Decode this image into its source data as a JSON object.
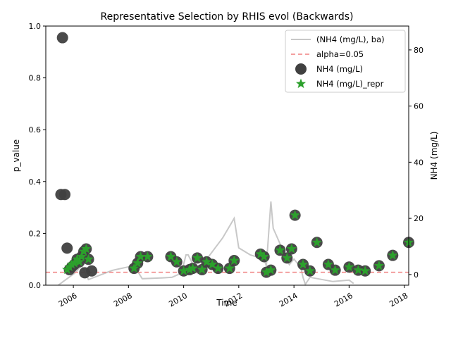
{
  "chart_data": {
    "type": "scatter",
    "title": "Representative Selection by RHIS evol (Backwards)",
    "xlabel": "Time",
    "ylabel": "p_value",
    "y2label": "NH4 (mg/L)",
    "xlim": [
      "2005-01-01",
      "2018-03-01"
    ],
    "ylim": [
      0,
      1.0
    ],
    "y2lim": [
      -3.8,
      88.5
    ],
    "x_ticks": [
      "2006",
      "2008",
      "2010",
      "2012",
      "2014",
      "2016",
      "2018"
    ],
    "y_ticks": [
      "0.0",
      "0.2",
      "0.4",
      "0.6",
      "0.8",
      "1.0"
    ],
    "y2_ticks": [
      "0",
      "20",
      "40",
      "60",
      "80"
    ],
    "legend_position": "upper right",
    "alpha": 0.05,
    "colors": {
      "line": "#c8c8c8",
      "alpha_line": "#f08080",
      "points": "#404040",
      "repr": "#2ca02c"
    },
    "series": [
      {
        "name": "(NH4 (mg/L), ba)",
        "kind": "line",
        "axis": "right",
        "points": [
          [
            "2005-06-15",
            -3.8
          ],
          [
            "2005-08-20",
            -2.5
          ],
          [
            "2006-01-20",
            0.5
          ],
          [
            "2006-04-20",
            3.2
          ],
          [
            "2006-07-20",
            -1.8
          ],
          [
            "2007-06-01",
            1.5
          ],
          [
            "2008-02-15",
            3.0
          ],
          [
            "2008-05-01",
            1.2
          ],
          [
            "2008-07-01",
            -1.5
          ],
          [
            "2009-04-01",
            -1.2
          ],
          [
            "2009-08-01",
            -1.0
          ],
          [
            "2009-12-01",
            0.5
          ],
          [
            "2010-02-01",
            7.0
          ],
          [
            "2010-03-01",
            7.0
          ],
          [
            "2010-07-01",
            0.5
          ],
          [
            "2010-12-01",
            6.5
          ],
          [
            "2011-06-01",
            13.0
          ],
          [
            "2011-11-01",
            20.0
          ],
          [
            "2012-01-01",
            9.5
          ],
          [
            "2012-06-01",
            7.0
          ],
          [
            "2012-12-01",
            5.5
          ],
          [
            "2013-01-01",
            3.0
          ],
          [
            "2013-03-01",
            26.0
          ],
          [
            "2013-04-01",
            16.5
          ],
          [
            "2013-08-01",
            9.0
          ],
          [
            "2013-11-01",
            3.5
          ],
          [
            "2014-01-01",
            5.5
          ],
          [
            "2014-04-01",
            2.5
          ],
          [
            "2014-05-01",
            -1.0
          ],
          [
            "2014-06-01",
            -3.5
          ],
          [
            "2014-08-01",
            -1.0
          ],
          [
            "2015-06-01",
            -2.5
          ],
          [
            "2016-01-01",
            -2.0
          ],
          [
            "2016-03-01",
            -3.2
          ]
        ]
      },
      {
        "name": "alpha=0.05",
        "kind": "hline",
        "axis": "left",
        "value": 0.05
      },
      {
        "name": "NH4 (mg/L)",
        "kind": "scatter",
        "axis": "left",
        "x": [
          "2005-08-10",
          "2005-07-20",
          "2005-09-10",
          "2005-10-10",
          "2006-09-01",
          "2005-11-10",
          "2005-12-10",
          "2006-01-15",
          "2006-02-20",
          "2006-03-20",
          "2006-04-20",
          "2006-05-20",
          "2006-06-20",
          "2006-07-20",
          "2006-06-01",
          "2008-03-15",
          "2008-05-01",
          "2008-06-10",
          "2008-09-10",
          "2009-07-15",
          "2009-10-01",
          "2010-01-01",
          "2010-03-20",
          "2010-05-01",
          "2010-07-01",
          "2010-09-01",
          "2010-11-01",
          "2011-01-15",
          "2011-04-01",
          "2011-09-01",
          "2011-11-01",
          "2012-10-15",
          "2012-12-01",
          "2013-01-01",
          "2013-03-01",
          "2013-07-01",
          "2013-10-01",
          "2013-12-01",
          "2014-01-15",
          "2014-05-01",
          "2014-08-01",
          "2014-11-01",
          "2015-04-01",
          "2015-07-01",
          "2016-01-01",
          "2016-05-01",
          "2016-08-01",
          "2017-02-01",
          "2017-08-01",
          "2018-03-01"
        ],
        "y": [
          0.955,
          0.35,
          0.35,
          0.143,
          0.055,
          0.06,
          0.07,
          0.08,
          0.1,
          0.09,
          0.11,
          0.13,
          0.14,
          0.1,
          0.048,
          0.065,
          0.085,
          0.11,
          0.11,
          0.11,
          0.09,
          0.055,
          0.06,
          0.065,
          0.105,
          0.06,
          0.09,
          0.08,
          0.065,
          0.065,
          0.095,
          0.12,
          0.11,
          0.05,
          0.058,
          0.135,
          0.105,
          0.14,
          0.27,
          0.08,
          0.055,
          0.165,
          0.08,
          0.058,
          0.07,
          0.058,
          0.055,
          0.075,
          0.115,
          0.165
        ]
      },
      {
        "name": "NH4 (mg/L)_repr",
        "kind": "scatter",
        "axis": "left",
        "marker": "star",
        "x": [
          "2005-10-10",
          "2005-11-10",
          "2005-12-10",
          "2006-01-15",
          "2006-02-20",
          "2006-03-20",
          "2006-04-20",
          "2006-05-20",
          "2006-06-20",
          "2006-07-20",
          "2008-03-15",
          "2008-05-01",
          "2008-06-10",
          "2008-09-10",
          "2009-07-15",
          "2009-10-01",
          "2010-01-01",
          "2010-03-20",
          "2010-05-01",
          "2010-07-01",
          "2010-09-01",
          "2010-11-01",
          "2011-01-15",
          "2011-04-01",
          "2011-09-01",
          "2011-11-01",
          "2012-10-15",
          "2012-12-01",
          "2013-01-01",
          "2013-03-01",
          "2013-07-01",
          "2013-10-01",
          "2013-12-01",
          "2014-01-15",
          "2014-05-01",
          "2014-08-01",
          "2014-11-01",
          "2015-04-01",
          "2015-07-01",
          "2016-01-01",
          "2016-05-01",
          "2016-08-01",
          "2017-02-01",
          "2017-08-01",
          "2018-03-01"
        ],
        "y": [
          0.06,
          0.07,
          0.08,
          0.085,
          0.1,
          0.09,
          0.11,
          0.13,
          0.14,
          0.1,
          0.065,
          0.085,
          0.11,
          0.11,
          0.11,
          0.09,
          0.055,
          0.06,
          0.065,
          0.105,
          0.06,
          0.09,
          0.08,
          0.065,
          0.065,
          0.095,
          0.12,
          0.11,
          0.05,
          0.058,
          0.135,
          0.105,
          0.14,
          0.27,
          0.08,
          0.055,
          0.165,
          0.08,
          0.058,
          0.07,
          0.058,
          0.055,
          0.075,
          0.115,
          0.165
        ]
      }
    ]
  }
}
